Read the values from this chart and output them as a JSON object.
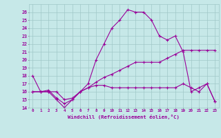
{
  "xlabel": "Windchill (Refroidissement éolien,°C)",
  "xlim": [
    -0.5,
    23.5
  ],
  "ylim": [
    14,
    27
  ],
  "yticks": [
    14,
    15,
    16,
    17,
    18,
    19,
    20,
    21,
    22,
    23,
    24,
    25,
    26
  ],
  "xticks": [
    0,
    1,
    2,
    3,
    4,
    5,
    6,
    7,
    8,
    9,
    10,
    11,
    12,
    13,
    14,
    15,
    16,
    17,
    18,
    19,
    20,
    21,
    22,
    23
  ],
  "bg_color": "#c6e8e8",
  "line_color": "#990099",
  "grid_color": "#a0c8c8",
  "line1_x": [
    0,
    1,
    2,
    3,
    4,
    5,
    6,
    7,
    8,
    9,
    10,
    11,
    12,
    13,
    14,
    15,
    16,
    17,
    18,
    19,
    20,
    21,
    22,
    23
  ],
  "line1_y": [
    18,
    16,
    16,
    15,
    14,
    15,
    16,
    17,
    20,
    22,
    24,
    25,
    26.3,
    26,
    26,
    25,
    23,
    22.5,
    23,
    21,
    16,
    16.5,
    17,
    14.8
  ],
  "line2_x": [
    0,
    1,
    2,
    3,
    4,
    5,
    6,
    7,
    8,
    9,
    10,
    11,
    12,
    13,
    14,
    15,
    16,
    17,
    18,
    19,
    20,
    21,
    22,
    23
  ],
  "line2_y": [
    16,
    16,
    16,
    16,
    15,
    15.2,
    16,
    16.5,
    17.2,
    17.8,
    18.2,
    18.7,
    19.2,
    19.7,
    19.7,
    19.7,
    19.7,
    20.2,
    20.7,
    21.2,
    21.2,
    21.2,
    21.2,
    21.2
  ],
  "line3_x": [
    0,
    1,
    2,
    3,
    4,
    5,
    6,
    7,
    8,
    9,
    10,
    11,
    12,
    13,
    14,
    15,
    16,
    17,
    18,
    19,
    20,
    21,
    22,
    23
  ],
  "line3_y": [
    16,
    16,
    16.2,
    15.2,
    14.5,
    15,
    16,
    16.5,
    16.8,
    16.8,
    16.5,
    16.5,
    16.5,
    16.5,
    16.5,
    16.5,
    16.5,
    16.5,
    16.5,
    17,
    16.5,
    16,
    17,
    14.8
  ]
}
